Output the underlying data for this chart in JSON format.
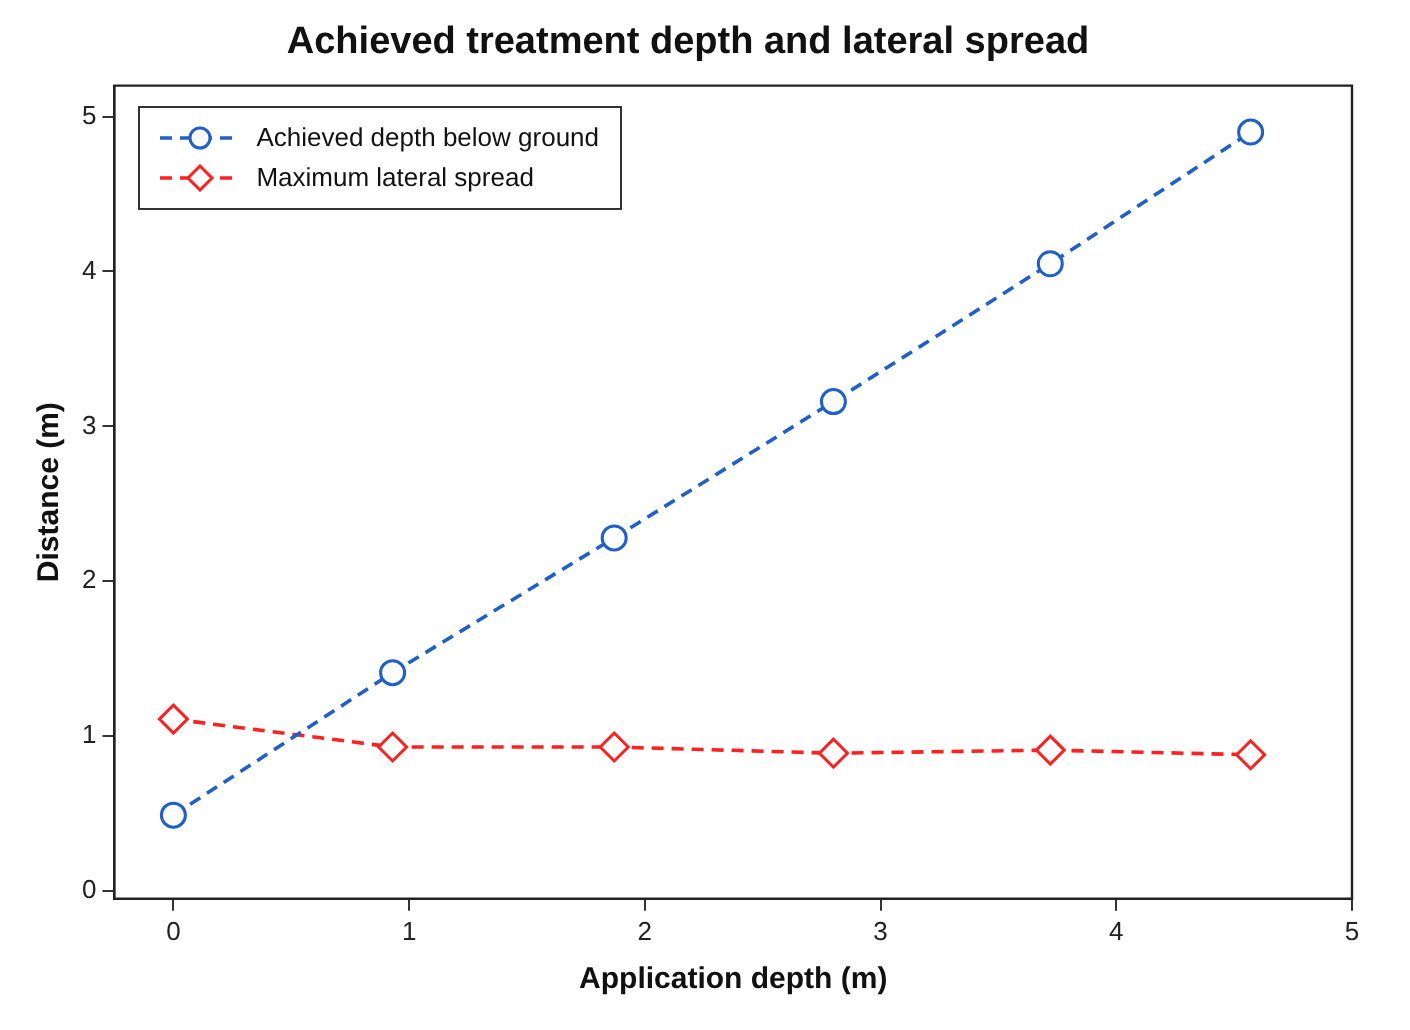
{
  "chart_data": {
    "type": "line",
    "title": "Achieved treatment depth and lateral spread",
    "xlabel": "Application depth (m)",
    "ylabel": "Distance (m)",
    "x": [
      0,
      0.93,
      1.87,
      2.8,
      3.72,
      4.57
    ],
    "series": [
      {
        "name": "Achieved depth below ground",
        "color": "#1f5fc8",
        "marker": "circle",
        "values": [
          0.49,
          1.41,
          2.28,
          3.16,
          4.05,
          4.9
        ]
      },
      {
        "name": "Maximum lateral spread",
        "color": "#ff2020",
        "marker": "diamond",
        "values": [
          1.11,
          0.93,
          0.93,
          0.89,
          0.91,
          0.88
        ]
      }
    ],
    "xlim": [
      -0.25,
      5
    ],
    "xticks": [
      0,
      1,
      2,
      3,
      4,
      5
    ],
    "ylim": [
      -0.05,
      5.2
    ],
    "yticks": [
      0,
      1,
      2,
      3,
      4,
      5
    ],
    "grid": false,
    "legend": "top left",
    "line_style": "dashed"
  }
}
